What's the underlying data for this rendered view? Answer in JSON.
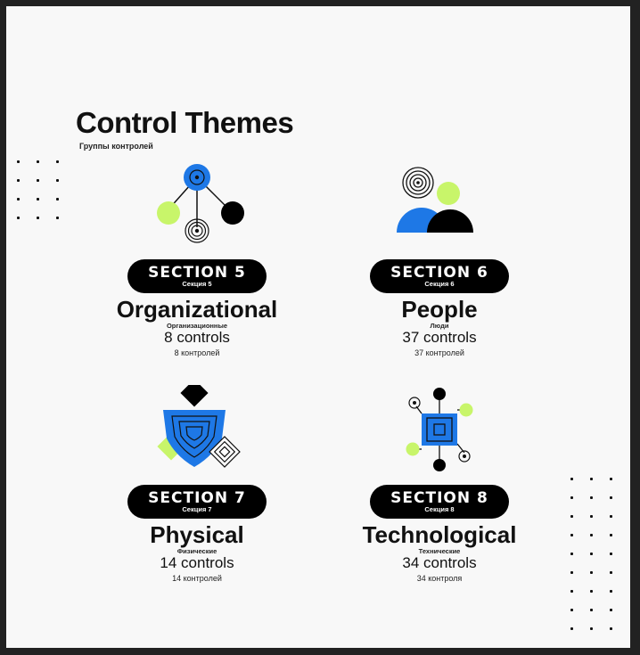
{
  "header": {
    "title": "Control Themes",
    "subtitle": "Группы контролей"
  },
  "colors": {
    "blue": "#1E78E6",
    "lime": "#C8F56A",
    "black": "#000000",
    "background": "#F8F8F8"
  },
  "sections": [
    {
      "icon": "network-nodes-icon",
      "section_label": "SECTION 5",
      "section_label_ru": "Секция 5",
      "name": "Organizational",
      "name_ru": "Организационные",
      "controls": "8 controls",
      "controls_ru": "8 контролей"
    },
    {
      "icon": "people-icon",
      "section_label": "SECTION 6",
      "section_label_ru": "Секция 6",
      "name": "People",
      "name_ru": "Люди",
      "controls": "37 controls",
      "controls_ru": "37 контролей"
    },
    {
      "icon": "shield-icon",
      "section_label": "SECTION 7",
      "section_label_ru": "Секция 7",
      "name": "Physical",
      "name_ru": "Физические",
      "controls": "14 controls",
      "controls_ru": "14 контролей"
    },
    {
      "icon": "chip-icon",
      "section_label": "SECTION 8",
      "section_label_ru": "Секция 8",
      "name": "Technological",
      "name_ru": "Технические",
      "controls": "34 controls",
      "controls_ru": "34 контроля"
    }
  ]
}
